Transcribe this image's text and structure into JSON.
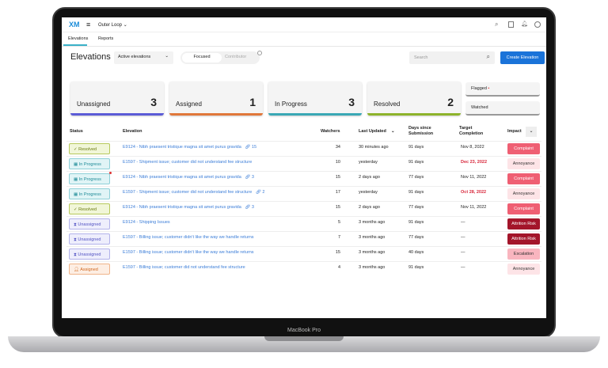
{
  "device": {
    "label": "MacBook Pro"
  },
  "topbar": {
    "logo": "XM",
    "project": "Outer Loop"
  },
  "tabs": [
    {
      "label": "Elevations",
      "active": true
    },
    {
      "label": "Reports"
    }
  ],
  "header": {
    "title": "Elevations",
    "filter": "Active elevations",
    "toggle": [
      "Focused",
      "Contributor"
    ],
    "search_placeholder": "Search",
    "create_label": "Create Elevation"
  },
  "cards": [
    {
      "label": "Unassigned",
      "count": "3",
      "color": "#5b5bd6"
    },
    {
      "label": "Assigned",
      "count": "1",
      "color": "#e0773a"
    },
    {
      "label": "In Progress",
      "count": "3",
      "color": "#3aa8b5"
    },
    {
      "label": "Resolved",
      "count": "2",
      "color": "#8db32a"
    }
  ],
  "side_filters": {
    "flagged": "Flagged",
    "watched": "Watched"
  },
  "table": {
    "headers": {
      "status": "Status",
      "elevation": "Elevation",
      "watchers": "Watchers",
      "last_updated": "Last Updated",
      "days": "Days since Submission",
      "target": "Target Completion",
      "impact": "Impact"
    },
    "rows": [
      {
        "status": "Resolved",
        "elevation": "E9124 - Nibh praesent tristique magna sit amet purus gravida",
        "links": "15",
        "watchers": "34",
        "last_updated": "30 minutes ago",
        "days": "91 days",
        "target": "Nov 8, 2022",
        "overdue": false,
        "impact": "Complaint",
        "flag": false
      },
      {
        "status": "In Progress",
        "elevation": "E1597 - Shipment issue; customer did not understand fee structure",
        "links": "",
        "watchers": "10",
        "last_updated": "yesterday",
        "days": "91 days",
        "target": "Dec 23, 2022",
        "overdue": true,
        "impact": "Annoyance",
        "flag": false
      },
      {
        "status": "In Progress",
        "elevation": "E9124 - Nibh praesent tristique magna sit amet purus gravida",
        "links": "3",
        "watchers": "15",
        "last_updated": "2 days ago",
        "days": "77 days",
        "target": "Nov 11, 2022",
        "overdue": false,
        "impact": "Complaint",
        "flag": true
      },
      {
        "status": "In Progress",
        "elevation": "E1597 - Shipment issue; customer did not understand fee structure",
        "links": "2",
        "watchers": "17",
        "last_updated": "yesterday",
        "days": "91 days",
        "target": "Oct 28, 2022",
        "overdue": true,
        "impact": "Annoyance",
        "flag": false
      },
      {
        "status": "Resolved",
        "elevation": "E9124 - Nibh praesent tristique magna sit amet purus gravida",
        "links": "3",
        "watchers": "15",
        "last_updated": "2 days ago",
        "days": "77 days",
        "target": "Nov 11, 2022",
        "overdue": false,
        "impact": "Complaint",
        "flag": false
      },
      {
        "status": "Unassigned",
        "elevation": "E9124 - Shipping Issues",
        "links": "",
        "watchers": "5",
        "last_updated": "3 months ago",
        "days": "91 days",
        "target": "—",
        "overdue": false,
        "impact": "Attrition Risk",
        "flag": false
      },
      {
        "status": "Unassigned",
        "elevation": "E1597 - Billing issue; customer didn't like the way we handle returns",
        "links": "",
        "watchers": "7",
        "last_updated": "3 months ago",
        "days": "77 days",
        "target": "—",
        "overdue": false,
        "impact": "Attrition Risk",
        "flag": false
      },
      {
        "status": "Unassigned",
        "elevation": "E1597 - Billing issue; customer didn't like the way we handle returns",
        "links": "",
        "watchers": "15",
        "last_updated": "3 months ago",
        "days": "40 days",
        "target": "—",
        "overdue": false,
        "impact": "Escalation",
        "flag": false
      },
      {
        "status": "Assigned",
        "elevation": "E1597 - Billing issue; customer did not understand fee structure",
        "links": "",
        "watchers": "4",
        "last_updated": "3 months ago",
        "days": "91 days",
        "target": "—",
        "overdue": false,
        "impact": "Annoyance",
        "flag": false
      }
    ]
  }
}
